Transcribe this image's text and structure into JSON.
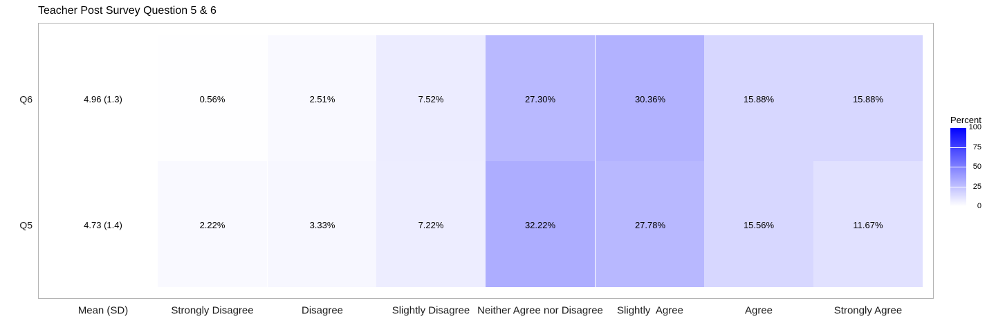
{
  "title": "Teacher Post Survey Question 5 & 6",
  "chart_data": {
    "type": "heatmap",
    "title": "Teacher Post Survey Question 5 & 6",
    "xlabel": "",
    "ylabel": "",
    "categories": [
      "Mean (SD)",
      "Strongly Disagree",
      "Disagree",
      "Slightly Disagree",
      "Neither Agree nor Disagree",
      "Slightly  Agree",
      "Agree",
      "Strongly Agree"
    ],
    "rows": [
      {
        "name": "Q6",
        "mean_sd": "4.96 (1.3)",
        "labels": [
          "0.56%",
          "2.51%",
          "7.52%",
          "27.30%",
          "30.36%",
          "15.88%",
          "15.88%"
        ],
        "values": [
          0.56,
          2.51,
          7.52,
          27.3,
          30.36,
          15.88,
          15.88
        ]
      },
      {
        "name": "Q5",
        "mean_sd": "4.73 (1.4)",
        "labels": [
          "2.22%",
          "3.33%",
          "7.22%",
          "32.22%",
          "27.78%",
          "15.56%",
          "11.67%"
        ],
        "values": [
          2.22,
          3.33,
          7.22,
          32.22,
          27.78,
          15.56,
          11.67
        ]
      }
    ],
    "color_scale": {
      "low": "#ffffff",
      "high": "#0000ff",
      "min": 0,
      "max": 100
    },
    "legend": {
      "title": "Percent",
      "ticks": [
        0,
        25,
        50,
        75,
        100
      ],
      "placement": "right"
    },
    "grid": false
  }
}
